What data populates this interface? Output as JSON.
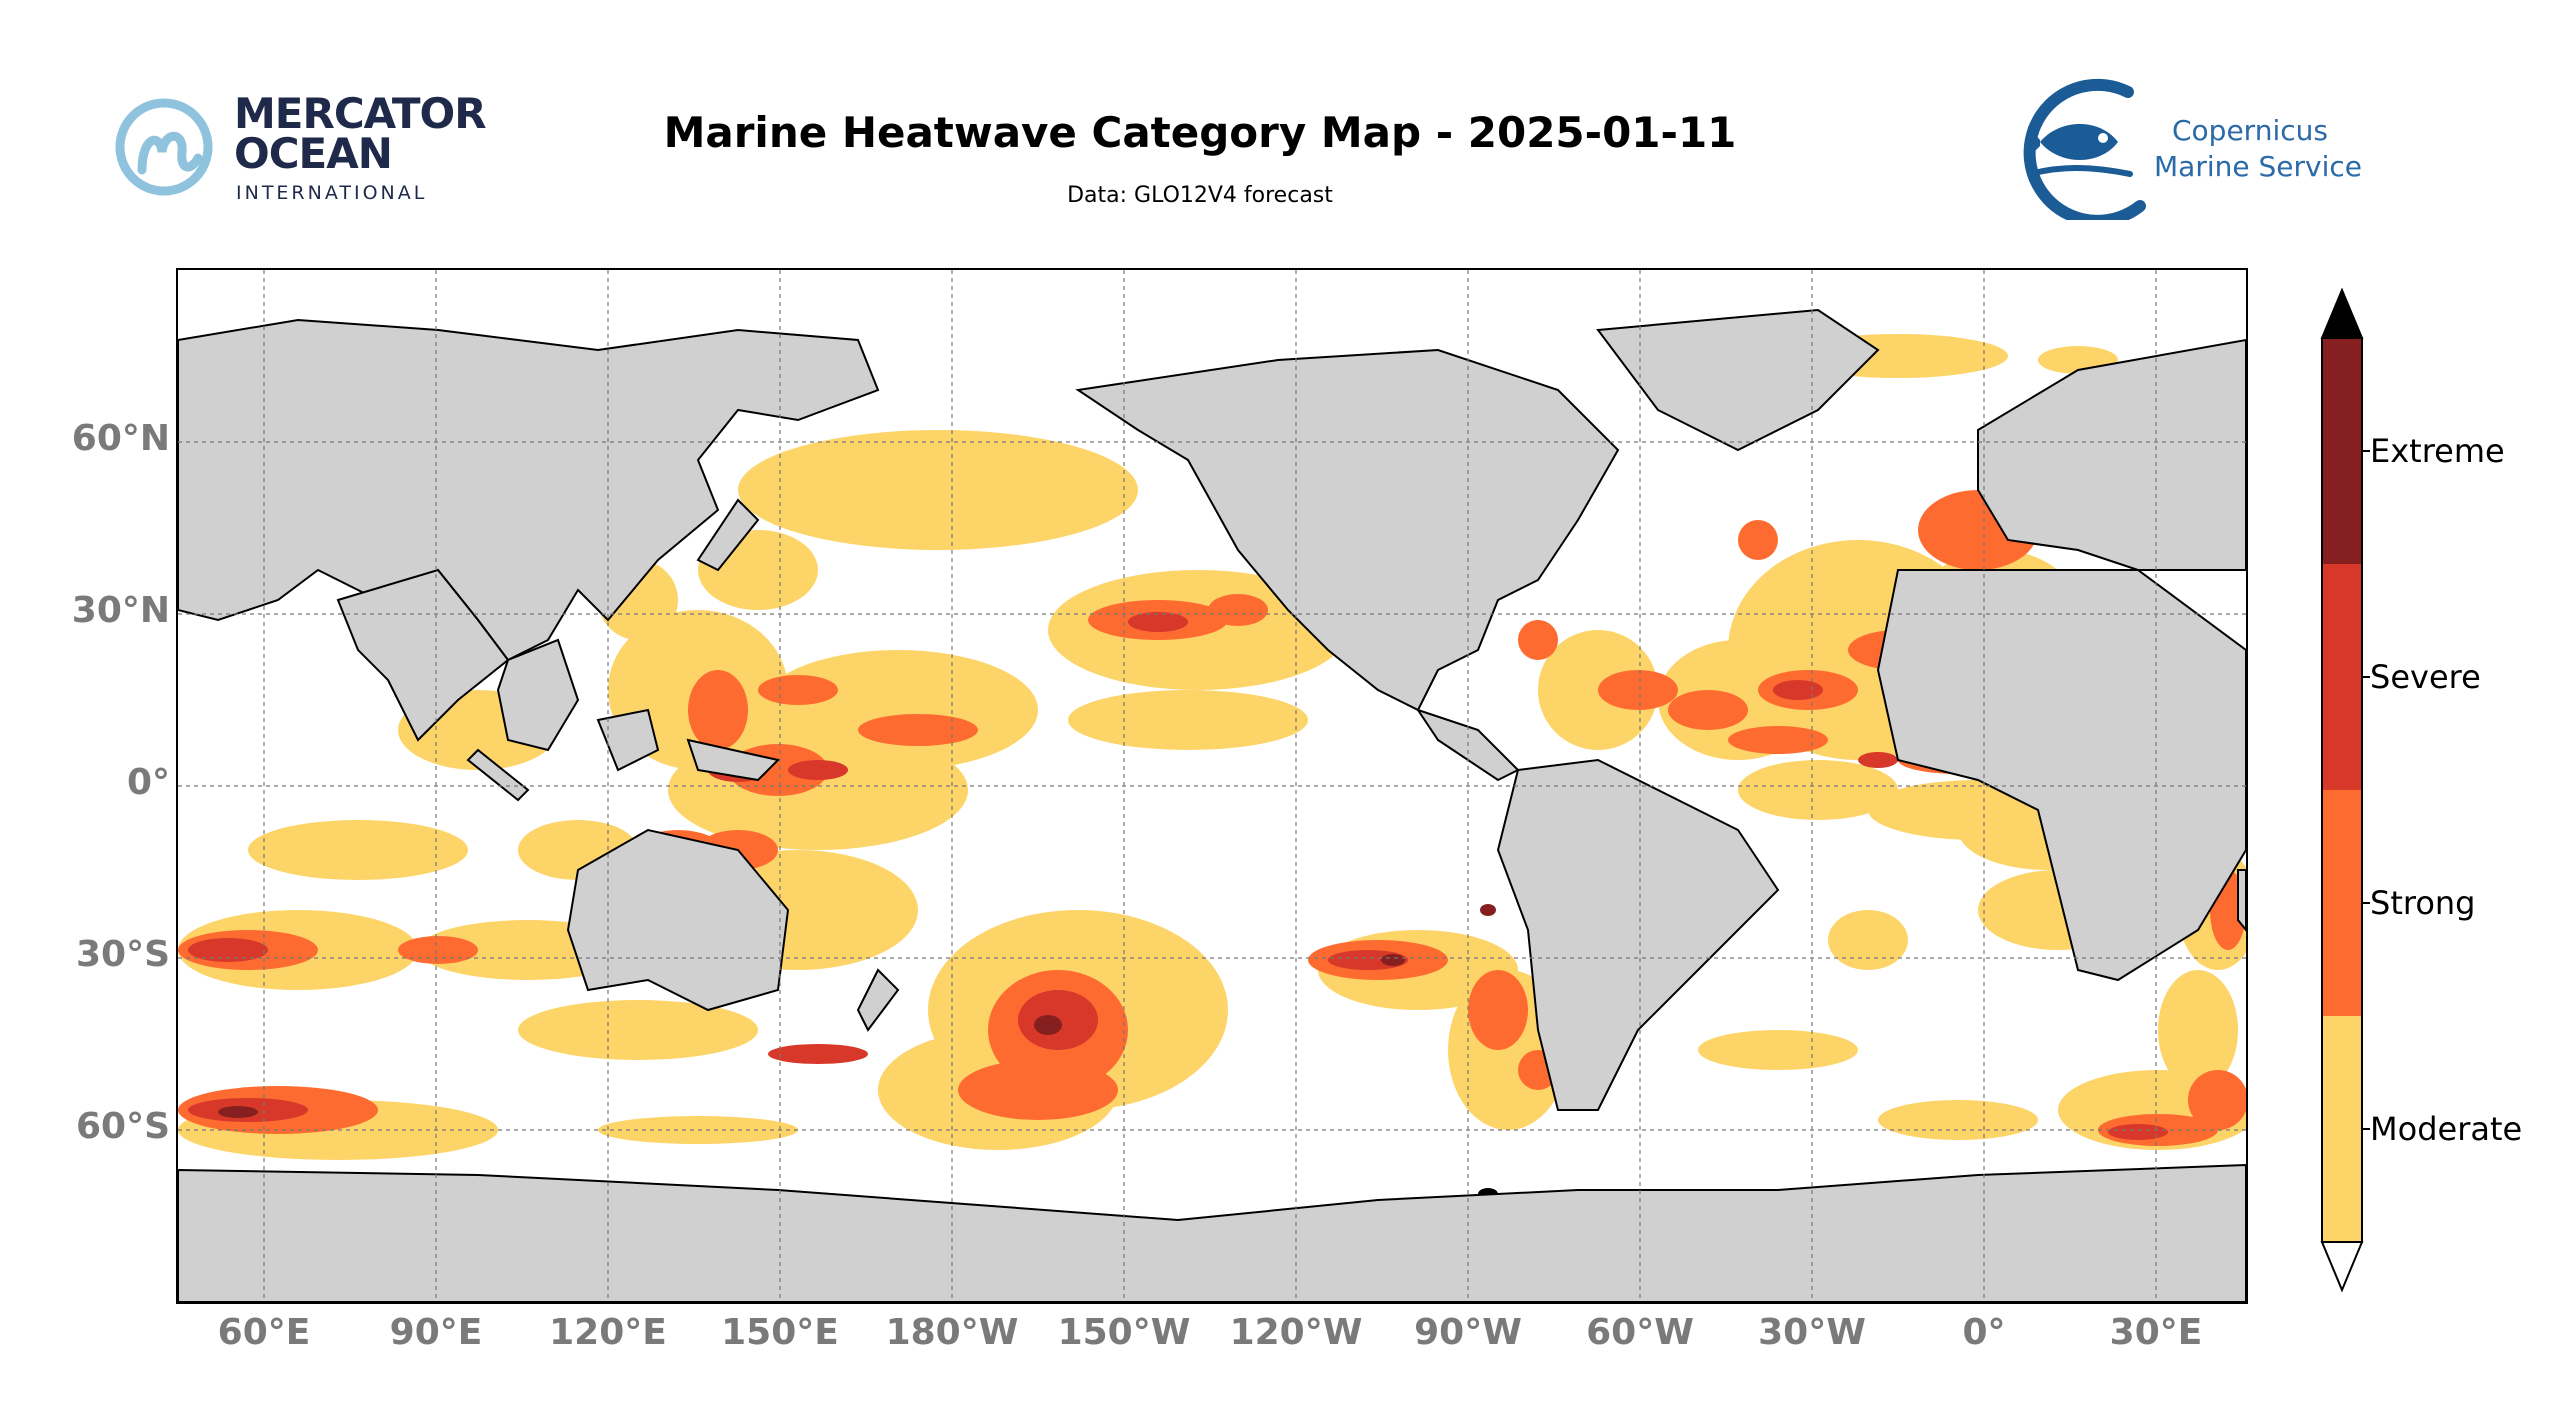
{
  "header": {
    "title": "Marine Heatwave Category Map - 2025-01-11",
    "subtitle": "Data: GLO12V4 forecast"
  },
  "logos": {
    "left": {
      "line1": "MERCATOR",
      "line2": "OCEAN",
      "line3": "INTERNATIONAL"
    },
    "right": {
      "line1": "Copernicus",
      "line2": "Marine Service"
    }
  },
  "map": {
    "lat_labels": [
      "60°N",
      "30°N",
      "0°",
      "30°S",
      "60°S"
    ],
    "lon_labels": [
      "60°E",
      "90°E",
      "120°E",
      "150°E",
      "180°W",
      "150°W",
      "120°W",
      "90°W",
      "60°W",
      "30°W",
      "0°",
      "30°E"
    ],
    "land_color": "#d0d0d0",
    "ocean_color": "#ffffff",
    "grid": "dashed"
  },
  "colorbar": {
    "categories": [
      "Extreme",
      "Severe",
      "Strong",
      "Moderate"
    ],
    "colors": {
      "Moderate": "#fdd468",
      "Strong": "#fe6b30",
      "Severe": "#d73829",
      "Extreme": "#861f1f",
      "above": "#000000",
      "below": "#ffffff"
    }
  }
}
